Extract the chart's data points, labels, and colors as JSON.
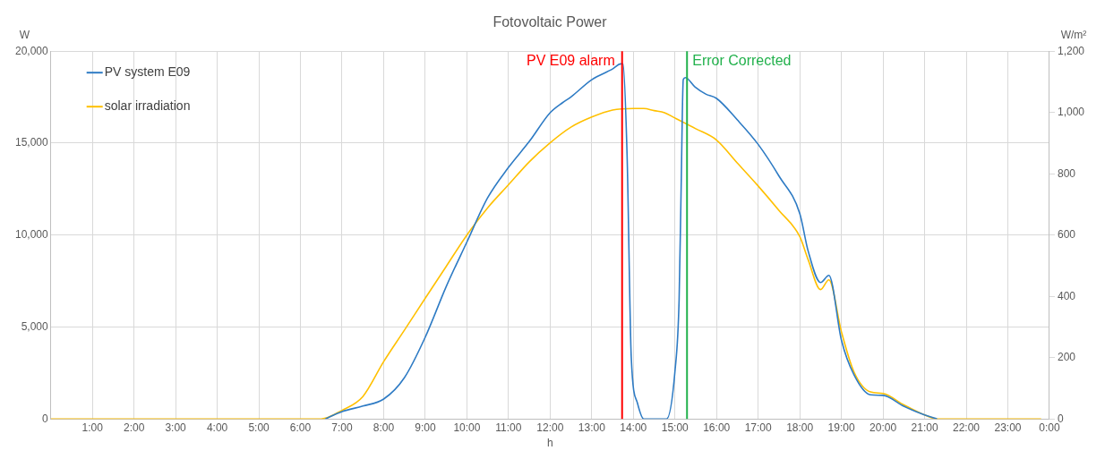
{
  "chart_data": {
    "type": "line",
    "title": "Fotovoltaic Power",
    "xlabel": "h",
    "ylabel": "W",
    "y2label": "W/m²",
    "xlim": [
      0,
      24
    ],
    "xticks": [
      {
        "value": 1,
        "label": "1:00"
      },
      {
        "value": 2,
        "label": "2:00"
      },
      {
        "value": 3,
        "label": "3:00"
      },
      {
        "value": 4,
        "label": "4:00"
      },
      {
        "value": 5,
        "label": "5:00"
      },
      {
        "value": 6,
        "label": "6:00"
      },
      {
        "value": 7,
        "label": "7:00"
      },
      {
        "value": 8,
        "label": "8:00"
      },
      {
        "value": 9,
        "label": "9:00"
      },
      {
        "value": 10,
        "label": "10:00"
      },
      {
        "value": 11,
        "label": "11:00"
      },
      {
        "value": 12,
        "label": "12:00"
      },
      {
        "value": 13,
        "label": "13:00"
      },
      {
        "value": 14,
        "label": "14:00"
      },
      {
        "value": 15,
        "label": "15:00"
      },
      {
        "value": 16,
        "label": "16:00"
      },
      {
        "value": 17,
        "label": "17:00"
      },
      {
        "value": 18,
        "label": "18:00"
      },
      {
        "value": 19,
        "label": "19:00"
      },
      {
        "value": 20,
        "label": "20:00"
      },
      {
        "value": 21,
        "label": "21:00"
      },
      {
        "value": 22,
        "label": "22:00"
      },
      {
        "value": 23,
        "label": "23:00"
      },
      {
        "value": 24,
        "label": "0:00"
      }
    ],
    "ylim": [
      0,
      20000
    ],
    "yticks": [
      0,
      {
        "value": 5000,
        "label": "5,000"
      },
      {
        "value": 10000,
        "label": "10,000"
      },
      {
        "value": 15000,
        "label": "15,000"
      },
      {
        "value": 20000,
        "label": "20,000"
      }
    ],
    "y2lim": [
      0,
      1200
    ],
    "y2ticks": [
      0,
      200,
      400,
      600,
      800,
      {
        "value": 1000,
        "label": "1,000"
      },
      {
        "value": 1200,
        "label": "1,200"
      }
    ],
    "grid": true,
    "legend": "top left",
    "marker": "none",
    "series": [
      {
        "name": "PV system E09",
        "color": "#2e7bc4",
        "x": [
          6.6,
          7,
          7.5,
          8,
          8.5,
          9,
          9.5,
          10,
          10.5,
          11,
          11.5,
          12,
          12.3,
          12.5,
          13,
          13.5,
          13.7,
          13.75,
          13.85,
          13.95,
          14.1,
          14.25,
          14.5,
          14.8,
          15,
          15.1,
          15.15,
          15.2,
          15.25,
          15.48,
          15.74,
          16,
          16.5,
          17,
          17.5,
          18,
          18.2,
          18.5,
          18.7,
          19,
          19.3,
          19.7,
          20,
          20.5,
          21,
          21.3
        ],
        "values": [
          0,
          400,
          700,
          1080,
          2250,
          4450,
          7180,
          9620,
          12030,
          13680,
          15090,
          16650,
          17200,
          17510,
          18450,
          19030,
          19310,
          19300,
          14320,
          3350,
          850,
          0,
          0,
          0,
          2580,
          6480,
          12740,
          18450,
          18560,
          18060,
          17670,
          17430,
          16260,
          14930,
          13210,
          11170,
          9140,
          7420,
          7810,
          4290,
          2410,
          1310,
          1280,
          690,
          220,
          0
        ]
      },
      {
        "name": "solar irradiation",
        "color": "#ffc000",
        "axis": "y2",
        "x": [
          0,
          6.5,
          7,
          7.5,
          8,
          8.5,
          9,
          9.5,
          10,
          10.5,
          11,
          11.5,
          12,
          12.5,
          13,
          13.5,
          14,
          14.25,
          14.5,
          14.75,
          15,
          15.5,
          16,
          16.5,
          17,
          17.5,
          18,
          18.2,
          18.5,
          18.7,
          19,
          19.3,
          19.7,
          20,
          20.5,
          21,
          21.3,
          23.8
        ],
        "values": [
          0,
          0,
          28,
          73,
          187,
          290,
          394,
          497,
          600,
          689,
          764,
          839,
          901,
          952,
          985,
          1008,
          1013,
          1013,
          1006,
          999,
          982,
          947,
          910,
          835,
          760,
          680,
          595,
          520,
          422,
          454,
          285,
          154,
          88,
          83,
          46,
          13,
          0,
          0
        ]
      }
    ],
    "ref_lines": [
      {
        "axis": "x",
        "value": 13.73,
        "label": "PV E09 alarm",
        "color": "#ff0000"
      },
      {
        "axis": "x",
        "value": 15.29,
        "label": "Error Corrected",
        "color": "#22b14c"
      }
    ]
  }
}
